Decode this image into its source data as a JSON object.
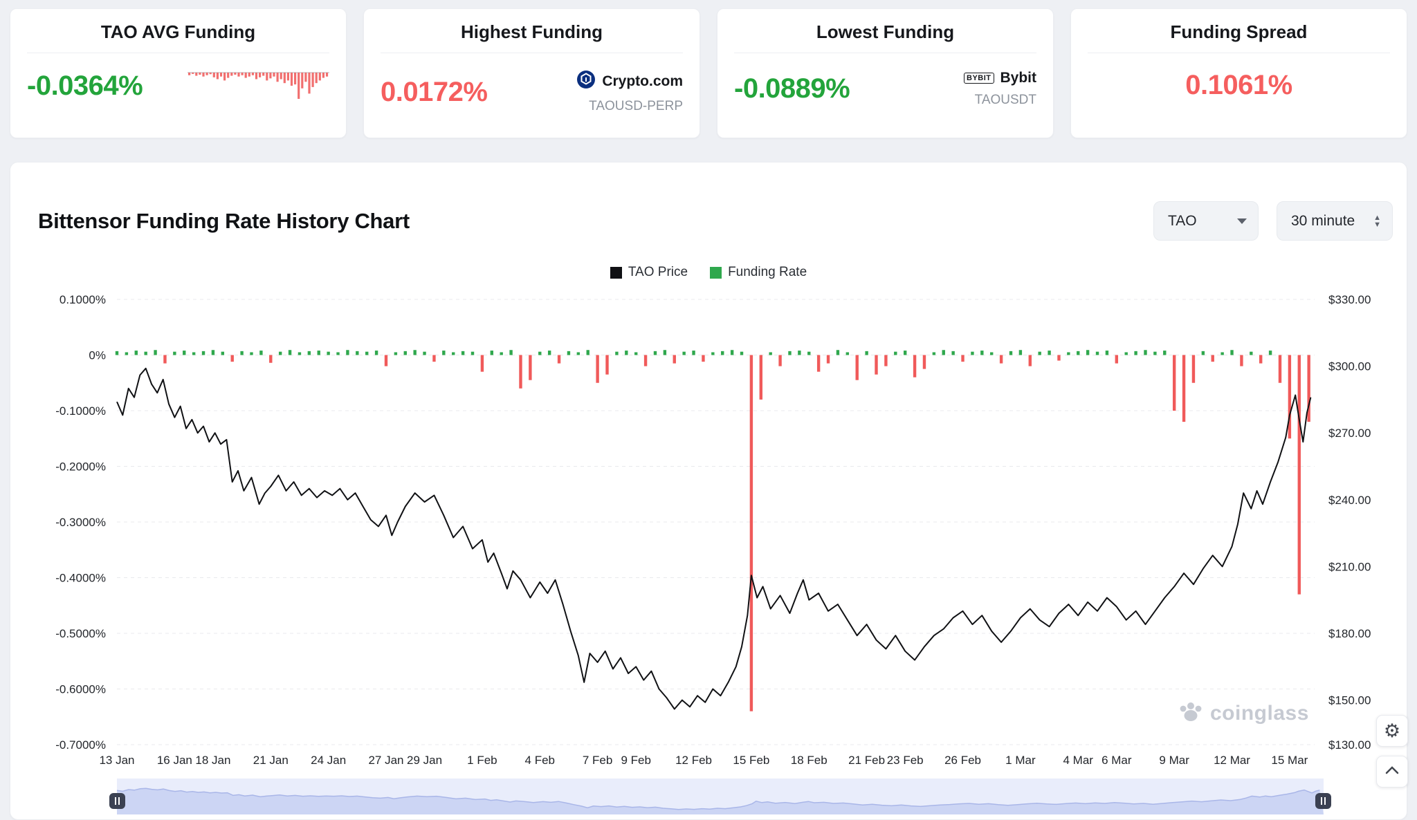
{
  "stat_cards": {
    "avg": {
      "title": "TAO AVG Funding",
      "value": "-0.0364%",
      "sparkline": [
        0.1,
        0.05,
        0.12,
        0.08,
        0.15,
        0.1,
        0.06,
        0.18,
        0.25,
        0.15,
        0.3,
        0.2,
        0.12,
        0.08,
        0.15,
        0.1,
        0.2,
        0.15,
        0.1,
        0.25,
        0.18,
        0.12,
        0.3,
        0.22,
        0.15,
        0.35,
        0.25,
        0.4,
        0.3,
        0.5,
        0.45,
        1.0,
        0.6,
        0.35,
        0.8,
        0.55,
        0.4,
        0.3,
        0.2,
        0.15
      ]
    },
    "highest": {
      "title": "Highest Funding",
      "value": "0.0172%",
      "exchange": "Crypto.com",
      "pair": "TAOUSD-PERP"
    },
    "lowest": {
      "title": "Lowest Funding",
      "value": "-0.0889%",
      "exchange": "Bybit",
      "pair": "TAOUSDT"
    },
    "spread": {
      "title": "Funding Spread",
      "value": "0.1061%"
    }
  },
  "chart_header": {
    "title": "Bittensor Funding Rate History Chart",
    "coin_select": "TAO",
    "interval_select": "30 minute"
  },
  "legend": {
    "price": "TAO Price",
    "funding": "Funding Rate"
  },
  "watermark": {
    "text": "coinglass"
  },
  "icons": {
    "gear": "⚙",
    "bybit": "BYBIT",
    "spinner_up": "▲",
    "spinner_down": "▼"
  },
  "theme": {
    "positive_green": "#23A43B",
    "negative_red": "#F55E5E"
  },
  "chart_data": {
    "type": "line+bar",
    "title": "Bittensor Funding Rate History Chart",
    "x_unit": "days since 13 Jan",
    "x_range": [
      0,
      62.3
    ],
    "left_axis": {
      "name": "Funding Rate",
      "range": [
        0.1,
        -0.7
      ],
      "ticks": [
        {
          "label": "0.1000%",
          "value": 0.1
        },
        {
          "label": "0%",
          "value": 0
        },
        {
          "label": "-0.1000%",
          "value": -0.1
        },
        {
          "label": "-0.2000%",
          "value": -0.2
        },
        {
          "label": "-0.3000%",
          "value": -0.3
        },
        {
          "label": "-0.4000%",
          "value": -0.4
        },
        {
          "label": "-0.5000%",
          "value": -0.5
        },
        {
          "label": "-0.6000%",
          "value": -0.6
        },
        {
          "label": "-0.7000%",
          "value": -0.7
        }
      ]
    },
    "right_axis": {
      "name": "TAO Price USD",
      "range": [
        330,
        130
      ],
      "ticks": [
        {
          "label": "$330.00",
          "value": 330
        },
        {
          "label": "$300.00",
          "value": 300
        },
        {
          "label": "$270.00",
          "value": 270
        },
        {
          "label": "$240.00",
          "value": 240
        },
        {
          "label": "$210.00",
          "value": 210
        },
        {
          "label": "$180.00",
          "value": 180
        },
        {
          "label": "$150.00",
          "value": 150
        },
        {
          "label": "$130.00",
          "value": 130
        }
      ]
    },
    "x_ticks": [
      {
        "label": "13 Jan",
        "day": 0
      },
      {
        "label": "16 Jan",
        "day": 3
      },
      {
        "label": "18 Jan",
        "day": 5
      },
      {
        "label": "21 Jan",
        "day": 8
      },
      {
        "label": "24 Jan",
        "day": 11
      },
      {
        "label": "27 Jan",
        "day": 14
      },
      {
        "label": "29 Jan",
        "day": 16
      },
      {
        "label": "1 Feb",
        "day": 19
      },
      {
        "label": "4 Feb",
        "day": 22
      },
      {
        "label": "7 Feb",
        "day": 25
      },
      {
        "label": "9 Feb",
        "day": 27
      },
      {
        "label": "12 Feb",
        "day": 30
      },
      {
        "label": "15 Feb",
        "day": 33
      },
      {
        "label": "18 Feb",
        "day": 36
      },
      {
        "label": "21 Feb",
        "day": 39
      },
      {
        "label": "23 Feb",
        "day": 41
      },
      {
        "label": "26 Feb",
        "day": 44
      },
      {
        "label": "1 Mar",
        "day": 47
      },
      {
        "label": "4 Mar",
        "day": 50
      },
      {
        "label": "6 Mar",
        "day": 52
      },
      {
        "label": "9 Mar",
        "day": 55
      },
      {
        "label": "12 Mar",
        "day": 58
      },
      {
        "label": "15 Mar",
        "day": 61
      }
    ],
    "colors": {
      "price": "#101114",
      "funding_positive": "#2FA84D",
      "funding_negative": "#F05A5A"
    },
    "series": [
      {
        "name": "TAO Price",
        "type": "line",
        "axis": "right",
        "points": [
          [
            0,
            284
          ],
          [
            0.3,
            278
          ],
          [
            0.6,
            290
          ],
          [
            0.9,
            286
          ],
          [
            1.2,
            296
          ],
          [
            1.5,
            299
          ],
          [
            1.8,
            292
          ],
          [
            2.1,
            288
          ],
          [
            2.4,
            294
          ],
          [
            2.7,
            283
          ],
          [
            3,
            277
          ],
          [
            3.3,
            282
          ],
          [
            3.6,
            272
          ],
          [
            3.9,
            276
          ],
          [
            4.2,
            270
          ],
          [
            4.5,
            273
          ],
          [
            4.8,
            266
          ],
          [
            5.1,
            270
          ],
          [
            5.4,
            265
          ],
          [
            5.7,
            267
          ],
          [
            6,
            248
          ],
          [
            6.3,
            253
          ],
          [
            6.6,
            244
          ],
          [
            7,
            250
          ],
          [
            7.4,
            238
          ],
          [
            7.7,
            243
          ],
          [
            8,
            246
          ],
          [
            8.4,
            251
          ],
          [
            8.8,
            244
          ],
          [
            9.2,
            248
          ],
          [
            9.6,
            242
          ],
          [
            10,
            245
          ],
          [
            10.4,
            241
          ],
          [
            10.8,
            244
          ],
          [
            11.2,
            242
          ],
          [
            11.6,
            245
          ],
          [
            12,
            240
          ],
          [
            12.4,
            243
          ],
          [
            12.8,
            237
          ],
          [
            13.2,
            231
          ],
          [
            13.6,
            228
          ],
          [
            14,
            233
          ],
          [
            14.3,
            224
          ],
          [
            14.6,
            230
          ],
          [
            15,
            237
          ],
          [
            15.5,
            243
          ],
          [
            16,
            239
          ],
          [
            16.5,
            242
          ],
          [
            17,
            233
          ],
          [
            17.5,
            223
          ],
          [
            18,
            228
          ],
          [
            18.5,
            218
          ],
          [
            19,
            222
          ],
          [
            19.3,
            212
          ],
          [
            19.6,
            216
          ],
          [
            20,
            207
          ],
          [
            20.3,
            200
          ],
          [
            20.6,
            208
          ],
          [
            21,
            204
          ],
          [
            21.5,
            196
          ],
          [
            22,
            203
          ],
          [
            22.4,
            198
          ],
          [
            22.8,
            204
          ],
          [
            23.2,
            193
          ],
          [
            23.6,
            181
          ],
          [
            24,
            170
          ],
          [
            24.3,
            158
          ],
          [
            24.6,
            171
          ],
          [
            25,
            167
          ],
          [
            25.4,
            172
          ],
          [
            25.8,
            164
          ],
          [
            26.2,
            169
          ],
          [
            26.6,
            162
          ],
          [
            27,
            165
          ],
          [
            27.4,
            159
          ],
          [
            27.8,
            163
          ],
          [
            28.2,
            155
          ],
          [
            28.6,
            151
          ],
          [
            29,
            146
          ],
          [
            29.4,
            150
          ],
          [
            29.8,
            147
          ],
          [
            30.2,
            152
          ],
          [
            30.6,
            149
          ],
          [
            31,
            155
          ],
          [
            31.4,
            152
          ],
          [
            31.8,
            158
          ],
          [
            32.2,
            165
          ],
          [
            32.5,
            174
          ],
          [
            32.8,
            188
          ],
          [
            33,
            206
          ],
          [
            33.3,
            196
          ],
          [
            33.6,
            201
          ],
          [
            34,
            191
          ],
          [
            34.5,
            197
          ],
          [
            35,
            189
          ],
          [
            35.4,
            198
          ],
          [
            35.7,
            204
          ],
          [
            36,
            195
          ],
          [
            36.5,
            198
          ],
          [
            37,
            190
          ],
          [
            37.5,
            193
          ],
          [
            38,
            186
          ],
          [
            38.5,
            179
          ],
          [
            39,
            184
          ],
          [
            39.5,
            177
          ],
          [
            40,
            173
          ],
          [
            40.5,
            179
          ],
          [
            41,
            172
          ],
          [
            41.5,
            168
          ],
          [
            42,
            174
          ],
          [
            42.5,
            179
          ],
          [
            43,
            182
          ],
          [
            43.5,
            187
          ],
          [
            44,
            190
          ],
          [
            44.5,
            184
          ],
          [
            45,
            188
          ],
          [
            45.5,
            181
          ],
          [
            46,
            176
          ],
          [
            46.5,
            181
          ],
          [
            47,
            187
          ],
          [
            47.5,
            191
          ],
          [
            48,
            186
          ],
          [
            48.5,
            183
          ],
          [
            49,
            189
          ],
          [
            49.5,
            193
          ],
          [
            50,
            188
          ],
          [
            50.5,
            194
          ],
          [
            51,
            190
          ],
          [
            51.5,
            196
          ],
          [
            52,
            192
          ],
          [
            52.5,
            186
          ],
          [
            53,
            190
          ],
          [
            53.5,
            184
          ],
          [
            54,
            190
          ],
          [
            54.5,
            196
          ],
          [
            55,
            201
          ],
          [
            55.5,
            207
          ],
          [
            56,
            202
          ],
          [
            56.5,
            209
          ],
          [
            57,
            215
          ],
          [
            57.5,
            210
          ],
          [
            58,
            219
          ],
          [
            58.3,
            229
          ],
          [
            58.6,
            243
          ],
          [
            59,
            236
          ],
          [
            59.3,
            244
          ],
          [
            59.6,
            238
          ],
          [
            60,
            248
          ],
          [
            60.4,
            257
          ],
          [
            60.8,
            268
          ],
          [
            61,
            278
          ],
          [
            61.3,
            287
          ],
          [
            61.5,
            276
          ],
          [
            61.7,
            266
          ],
          [
            61.9,
            279
          ],
          [
            62.1,
            286
          ]
        ]
      },
      {
        "name": "Funding Rate",
        "type": "bar",
        "axis": "left",
        "unit": "%",
        "step_days": 0.5,
        "values": [
          0.007,
          0.005,
          0.008,
          0.006,
          0.009,
          -0.015,
          0.006,
          0.008,
          0.005,
          0.007,
          0.009,
          0.006,
          -0.012,
          0.007,
          0.005,
          0.008,
          -0.014,
          0.006,
          0.009,
          0.005,
          0.007,
          0.008,
          0.006,
          0.005,
          0.009,
          0.007,
          0.006,
          0.008,
          -0.02,
          0.005,
          0.007,
          0.009,
          0.006,
          -0.012,
          0.008,
          0.005,
          0.007,
          0.006,
          -0.03,
          0.008,
          0.005,
          0.009,
          -0.06,
          -0.045,
          0.006,
          0.008,
          -0.015,
          0.007,
          0.005,
          0.009,
          -0.05,
          -0.035,
          0.006,
          0.008,
          0.005,
          -0.02,
          0.007,
          0.009,
          -0.015,
          0.006,
          0.008,
          -0.012,
          0.005,
          0.007,
          0.009,
          0.006,
          -0.64,
          -0.08,
          0.005,
          -0.02,
          0.007,
          0.008,
          0.006,
          -0.03,
          -0.015,
          0.009,
          0.005,
          -0.045,
          0.007,
          -0.035,
          -0.02,
          0.006,
          0.008,
          -0.04,
          -0.025,
          0.005,
          0.009,
          0.007,
          -0.012,
          0.006,
          0.008,
          0.005,
          -0.015,
          0.007,
          0.009,
          -0.02,
          0.006,
          0.008,
          -0.01,
          0.005,
          0.007,
          0.009,
          0.006,
          0.008,
          -0.015,
          0.005,
          0.007,
          0.009,
          0.006,
          0.008,
          -0.1,
          -0.12,
          -0.05,
          0.007,
          -0.012,
          0.005,
          0.009,
          -0.02,
          0.006,
          -0.015,
          0.008,
          -0.05,
          -0.15,
          -0.43,
          -0.12
        ]
      }
    ]
  }
}
